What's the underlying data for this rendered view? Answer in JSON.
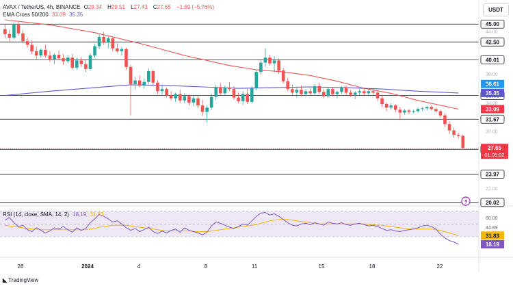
{
  "header": {
    "symbol_line": "AVAX / TetherUS, 4h, BINANCE",
    "ohlc": [
      {
        "k": "O",
        "v": "29.34"
      },
      {
        "k": "H",
        "v": "29.51"
      },
      {
        "k": "L",
        "v": "27.43"
      },
      {
        "k": "C",
        "v": "27.65"
      }
    ],
    "change": "−1.69 (−5.76%)",
    "ema_label": "EMA Cross 50/200",
    "ema_fast_value": "33.09",
    "ema_slow_value": "35.35",
    "rsi_label": "RSI (14, close, SMA, 14, 2)",
    "rsi_value": "18.19",
    "rsi_ma_value": "31.83"
  },
  "currency_button": "USDT",
  "footer_brand": "TradingView",
  "colors": {
    "up": "#26a69a",
    "down": "#ef5350",
    "ema_fast": "#ef5350",
    "ema_slow": "#5b57d1",
    "rsi": "#7e57c2",
    "rsi_ma": "#f5b800",
    "rsi_band": "#ede7f6"
  },
  "chart_data": {
    "type": "candlestick",
    "price_axis": {
      "min": 20.0,
      "max": 45.5,
      "ticks": [
        "44.00",
        "38.00",
        "34.00",
        "30.00",
        "22.00"
      ]
    },
    "horizontal_levels": [
      "45.00",
      "42.50",
      "40.01",
      "35.00",
      "31.67",
      "27.46",
      "23.97",
      "20.02"
    ],
    "price_badges": [
      {
        "label": "36.61",
        "value": 36.61,
        "color": "#2196f3"
      },
      {
        "label": "35.35",
        "value": 35.35,
        "color": "#5b57d1"
      },
      {
        "label": "33.09",
        "value": 33.09,
        "color": "#f23645"
      }
    ],
    "last_price": {
      "label": "27.65",
      "countdown": "01:05:02",
      "value": 27.65
    },
    "x_labels": [
      "28",
      "2024",
      "4",
      "8",
      "11",
      "15",
      "18",
      "22"
    ],
    "candles": [
      [
        44.3,
        45.0,
        43.0,
        43.6
      ],
      [
        43.6,
        44.2,
        42.6,
        43.1
      ],
      [
        43.1,
        45.2,
        42.9,
        44.9
      ],
      [
        44.9,
        45.3,
        43.4,
        43.7
      ],
      [
        43.7,
        44.2,
        42.3,
        42.6
      ],
      [
        42.6,
        43.1,
        41.7,
        42.1
      ],
      [
        42.1,
        42.7,
        40.8,
        41.2
      ],
      [
        41.2,
        41.9,
        40.1,
        40.6
      ],
      [
        40.6,
        41.6,
        40.3,
        41.4
      ],
      [
        41.4,
        42.1,
        40.3,
        40.6
      ],
      [
        40.6,
        41.2,
        39.7,
        40.1
      ],
      [
        40.1,
        40.9,
        39.4,
        40.7
      ],
      [
        40.7,
        41.3,
        39.9,
        40.2
      ],
      [
        40.2,
        40.8,
        39.3,
        39.8
      ],
      [
        39.8,
        40.7,
        39.5,
        40.3
      ],
      [
        40.3,
        40.8,
        38.6,
        38.9
      ],
      [
        38.9,
        40.3,
        38.6,
        39.9
      ],
      [
        39.9,
        40.4,
        39.0,
        39.4
      ],
      [
        39.4,
        40.0,
        38.3,
        38.7
      ],
      [
        38.7,
        40.9,
        38.5,
        40.6
      ],
      [
        40.6,
        42.2,
        40.3,
        41.9
      ],
      [
        41.9,
        43.6,
        41.5,
        43.2
      ],
      [
        43.2,
        43.9,
        42.1,
        42.4
      ],
      [
        42.4,
        43.3,
        41.6,
        43.0
      ],
      [
        43.0,
        43.2,
        41.2,
        41.6
      ],
      [
        41.6,
        42.3,
        41.0,
        41.2
      ],
      [
        41.2,
        41.8,
        40.6,
        41.5
      ],
      [
        41.5,
        41.7,
        38.6,
        39.0
      ],
      [
        39.0,
        39.3,
        32.2,
        36.6
      ],
      [
        36.6,
        37.6,
        35.8,
        37.1
      ],
      [
        37.1,
        37.8,
        36.1,
        36.4
      ],
      [
        36.4,
        37.4,
        36.0,
        36.9
      ],
      [
        36.9,
        38.8,
        36.6,
        38.4
      ],
      [
        38.4,
        38.6,
        36.5,
        36.8
      ],
      [
        36.8,
        37.1,
        35.2,
        35.6
      ],
      [
        35.6,
        36.4,
        35.1,
        35.9
      ],
      [
        35.9,
        36.1,
        34.7,
        35.0
      ],
      [
        35.0,
        35.6,
        34.3,
        34.6
      ],
      [
        34.6,
        35.4,
        34.1,
        35.2
      ],
      [
        35.2,
        35.8,
        33.9,
        34.3
      ],
      [
        34.3,
        35.3,
        33.9,
        34.9
      ],
      [
        34.9,
        35.1,
        33.6,
        34.0
      ],
      [
        34.0,
        35.0,
        33.5,
        34.6
      ],
      [
        34.6,
        35.0,
        33.2,
        33.6
      ],
      [
        33.6,
        34.4,
        32.1,
        32.7
      ],
      [
        32.7,
        33.6,
        31.2,
        33.3
      ],
      [
        33.3,
        35.2,
        33.0,
        34.8
      ],
      [
        34.8,
        36.5,
        34.4,
        36.1
      ],
      [
        36.1,
        36.7,
        35.0,
        35.3
      ],
      [
        35.3,
        36.4,
        35.1,
        36.1
      ],
      [
        36.1,
        36.9,
        35.6,
        35.9
      ],
      [
        35.9,
        36.3,
        34.4,
        34.7
      ],
      [
        34.7,
        35.4,
        33.9,
        34.2
      ],
      [
        34.2,
        35.6,
        33.7,
        35.2
      ],
      [
        35.2,
        36.0,
        33.8,
        34.1
      ],
      [
        34.1,
        36.3,
        33.9,
        36.0
      ],
      [
        36.0,
        38.6,
        35.7,
        38.3
      ],
      [
        38.3,
        40.0,
        37.9,
        39.6
      ],
      [
        39.6,
        41.6,
        39.0,
        40.3
      ],
      [
        40.3,
        40.7,
        39.2,
        39.5
      ],
      [
        39.5,
        40.5,
        38.3,
        39.9
      ],
      [
        39.9,
        40.2,
        38.0,
        38.5
      ],
      [
        38.5,
        38.8,
        36.7,
        37.0
      ],
      [
        37.0,
        37.5,
        35.6,
        35.9
      ],
      [
        35.9,
        36.5,
        35.1,
        35.4
      ],
      [
        35.4,
        36.1,
        34.7,
        35.8
      ],
      [
        35.8,
        36.4,
        34.9,
        35.2
      ],
      [
        35.2,
        35.9,
        34.9,
        35.6
      ],
      [
        35.6,
        36.0,
        35.1,
        35.3
      ],
      [
        35.3,
        36.6,
        35.1,
        36.3
      ],
      [
        36.3,
        36.8,
        35.2,
        35.5
      ],
      [
        35.5,
        35.9,
        34.6,
        34.9
      ],
      [
        34.9,
        36.1,
        34.7,
        35.9
      ],
      [
        35.9,
        36.2,
        34.9,
        35.2
      ],
      [
        35.2,
        35.7,
        34.6,
        35.5
      ],
      [
        35.5,
        36.3,
        35.2,
        36.1
      ],
      [
        36.1,
        36.4,
        35.1,
        35.4
      ],
      [
        35.4,
        35.8,
        34.8,
        35.1
      ],
      [
        35.1,
        35.6,
        34.5,
        35.4
      ],
      [
        35.4,
        35.9,
        35.0,
        35.6
      ],
      [
        35.6,
        36.1,
        35.0,
        35.3
      ],
      [
        35.3,
        35.8,
        34.9,
        35.6
      ],
      [
        35.6,
        36.0,
        35.1,
        35.4
      ],
      [
        35.4,
        35.6,
        34.2,
        34.6
      ],
      [
        34.6,
        35.0,
        33.4,
        33.8
      ],
      [
        33.8,
        34.0,
        32.8,
        33.3
      ],
      [
        33.3,
        33.9,
        33.0,
        33.6
      ],
      [
        33.6,
        33.8,
        32.6,
        33.0
      ],
      [
        33.0,
        33.4,
        31.6,
        32.6
      ],
      [
        32.6,
        33.1,
        32.3,
        32.9
      ],
      [
        32.9,
        33.1,
        32.4,
        32.7
      ],
      [
        32.7,
        33.0,
        32.5,
        32.8
      ],
      [
        32.8,
        33.3,
        32.6,
        33.1
      ],
      [
        33.1,
        33.4,
        32.8,
        33.2
      ],
      [
        33.2,
        33.5,
        32.9,
        33.4
      ],
      [
        33.4,
        33.6,
        32.9,
        33.1
      ],
      [
        33.1,
        33.3,
        32.6,
        32.8
      ],
      [
        32.8,
        33.0,
        31.9,
        32.2
      ],
      [
        32.2,
        32.5,
        30.6,
        31.0
      ],
      [
        31.0,
        31.4,
        29.6,
        30.1
      ],
      [
        30.1,
        30.5,
        29.1,
        29.5
      ],
      [
        29.5,
        29.8,
        29.0,
        29.34
      ],
      [
        29.34,
        29.51,
        27.43,
        27.65
      ]
    ],
    "ema_fast": [
      [
        0,
        45.6
      ],
      [
        10,
        44.9
      ],
      [
        20,
        43.8
      ],
      [
        30,
        42.3
      ],
      [
        40,
        40.6
      ],
      [
        50,
        39.2
      ],
      [
        56,
        38.6
      ],
      [
        62,
        38.3
      ],
      [
        68,
        37.8
      ],
      [
        74,
        37.0
      ],
      [
        80,
        36.0
      ],
      [
        86,
        35.3
      ],
      [
        92,
        34.3
      ],
      [
        101,
        33.09
      ]
    ],
    "ema_slow": [
      [
        0,
        35.0
      ],
      [
        10,
        35.6
      ],
      [
        20,
        36.1
      ],
      [
        28,
        36.5
      ],
      [
        36,
        36.4
      ],
      [
        44,
        36.2
      ],
      [
        52,
        36.0
      ],
      [
        60,
        36.1
      ],
      [
        68,
        36.2
      ],
      [
        76,
        36.1
      ],
      [
        84,
        35.9
      ],
      [
        92,
        35.6
      ],
      [
        101,
        35.35
      ]
    ],
    "rsi": {
      "axis": {
        "min": 0,
        "max": 75,
        "band": [
          30,
          70
        ],
        "ticks": [
          "60.00",
          "44.89",
          "32.95"
        ]
      },
      "values": [
        56,
        60,
        52,
        46,
        48,
        41,
        38,
        44,
        40,
        36,
        39,
        44,
        42,
        46,
        41,
        37,
        44,
        40,
        43,
        52,
        58,
        65,
        62,
        58,
        53,
        55,
        50,
        44,
        40,
        43,
        38,
        41,
        45,
        38,
        35,
        39,
        36,
        40,
        42,
        37,
        44,
        40,
        38,
        36,
        33,
        37,
        47,
        53,
        51,
        48,
        45,
        43,
        46,
        50,
        48,
        55,
        62,
        67,
        68,
        64,
        66,
        62,
        57,
        52,
        48,
        47,
        50,
        51,
        49,
        52,
        50,
        48,
        53,
        51,
        50,
        52,
        49,
        48,
        50,
        51,
        49,
        47,
        48,
        46,
        43,
        40,
        41,
        39,
        38,
        40,
        41,
        42,
        44,
        47,
        48,
        46,
        42,
        34,
        28,
        24,
        22,
        18.19
      ],
      "ma": [
        48,
        47,
        46,
        45,
        44,
        43,
        42,
        42,
        41,
        41,
        41,
        41,
        41,
        41,
        41,
        41,
        41,
        41,
        41,
        42,
        43,
        45,
        46,
        47,
        48,
        48,
        48,
        48,
        47,
        46,
        45,
        44,
        43,
        42,
        41,
        40,
        39,
        39,
        39,
        39,
        39,
        39,
        38,
        38,
        38,
        38,
        39,
        40,
        41,
        42,
        43,
        44,
        45,
        46,
        47,
        48,
        49,
        51,
        53,
        55,
        56,
        57,
        57,
        57,
        56,
        55,
        54,
        53,
        52,
        51,
        50,
        50,
        50,
        50,
        50,
        50,
        50,
        50,
        50,
        50,
        50,
        49,
        49,
        48,
        48,
        47,
        46,
        45,
        44,
        43,
        42,
        42,
        42,
        42,
        42,
        42,
        41,
        40,
        38,
        36,
        34,
        31.83
      ]
    }
  }
}
